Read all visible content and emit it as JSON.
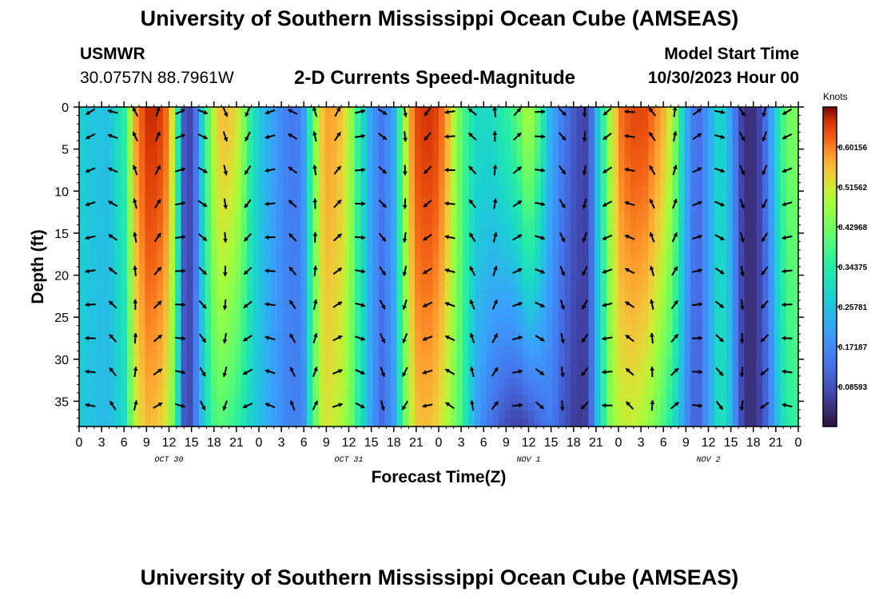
{
  "header": {
    "title": "University of Southern Mississippi Ocean Cube (AMSEAS)",
    "station_name": "USMWR",
    "station_coords": "30.0757N  88.7961W",
    "plot_title": "2-D Currents Speed-Magnitude",
    "start_label": "Model Start Time",
    "start_value": "10/30/2023 Hour 00"
  },
  "footer": {
    "title": "University of Southern Mississippi Ocean Cube (AMSEAS)"
  },
  "chart_data": {
    "type": "heatmap",
    "title": "2-D Currents Speed-Magnitude",
    "xlabel": "Forecast Time(Z)",
    "ylabel": "Depth (ft)",
    "x_range_hours": [
      0,
      96
    ],
    "y_range_ft": [
      0,
      38
    ],
    "y_ticks": [
      0,
      5,
      10,
      15,
      20,
      25,
      30,
      35
    ],
    "x_ticks": [
      {
        "h": 0,
        "label": "0"
      },
      {
        "h": 3,
        "label": "3"
      },
      {
        "h": 6,
        "label": "6"
      },
      {
        "h": 9,
        "label": "9"
      },
      {
        "h": 12,
        "label": "12"
      },
      {
        "h": 15,
        "label": "15"
      },
      {
        "h": 18,
        "label": "18"
      },
      {
        "h": 21,
        "label": "21"
      },
      {
        "h": 24,
        "label": "0"
      },
      {
        "h": 27,
        "label": "3"
      },
      {
        "h": 30,
        "label": "6"
      },
      {
        "h": 33,
        "label": "9"
      },
      {
        "h": 36,
        "label": "12"
      },
      {
        "h": 39,
        "label": "15"
      },
      {
        "h": 42,
        "label": "18"
      },
      {
        "h": 45,
        "label": "21"
      },
      {
        "h": 48,
        "label": "0"
      },
      {
        "h": 51,
        "label": "3"
      },
      {
        "h": 54,
        "label": "6"
      },
      {
        "h": 57,
        "label": "9"
      },
      {
        "h": 60,
        "label": "12"
      },
      {
        "h": 63,
        "label": "15"
      },
      {
        "h": 66,
        "label": "18"
      },
      {
        "h": 69,
        "label": "21"
      },
      {
        "h": 72,
        "label": "0"
      },
      {
        "h": 75,
        "label": "3"
      },
      {
        "h": 78,
        "label": "6"
      },
      {
        "h": 81,
        "label": "9"
      },
      {
        "h": 84,
        "label": "12"
      },
      {
        "h": 87,
        "label": "15"
      },
      {
        "h": 90,
        "label": "18"
      },
      {
        "h": 93,
        "label": "21"
      },
      {
        "h": 96,
        "label": "0"
      }
    ],
    "day_labels": [
      {
        "h": 12,
        "label": "OCT 30"
      },
      {
        "h": 36,
        "label": "OCT 31"
      },
      {
        "h": 60,
        "label": "NOV 1"
      },
      {
        "h": 84,
        "label": "NOV 2"
      }
    ],
    "colorbar": {
      "unit": "Knots",
      "min": 0.0,
      "max": 0.6875,
      "ticks": [
        0.08593,
        0.17187,
        0.25781,
        0.34375,
        0.42968,
        0.51562,
        0.60156
      ],
      "tick_labels": [
        "0.08593",
        "0.17187",
        "0.25781",
        "0.34375",
        "0.42968",
        "0.51562",
        "0.60156"
      ]
    },
    "speed_profile": {
      "hours": [
        0,
        2,
        4,
        6,
        7.5,
        9,
        10.5,
        12,
        13,
        13.8,
        14.5,
        15.5,
        16.5,
        17.5,
        18.5,
        20,
        21.5,
        23,
        24.5,
        26,
        27.5,
        29,
        30,
        31,
        32,
        33,
        34.5,
        36,
        37.5,
        39,
        40.5,
        42,
        43,
        44,
        45,
        46.5,
        48,
        49.5,
        51,
        53,
        55,
        57,
        58.5,
        60,
        61.5,
        63,
        64.5,
        66,
        67.5,
        68.5,
        69.5,
        71,
        72.5,
        74,
        75.5,
        77,
        78.5,
        79.5,
        80.5,
        81.5,
        82.5,
        84,
        85.5,
        86.5,
        87.5,
        88.5,
        89.5,
        90.5,
        91.5,
        92.5,
        93.5,
        94.5,
        95.5,
        96
      ],
      "surface": [
        0.28,
        0.26,
        0.25,
        0.35,
        0.58,
        0.66,
        0.66,
        0.6,
        0.4,
        0.12,
        0.05,
        0.12,
        0.3,
        0.45,
        0.55,
        0.56,
        0.5,
        0.33,
        0.25,
        0.2,
        0.16,
        0.14,
        0.2,
        0.38,
        0.53,
        0.58,
        0.57,
        0.5,
        0.33,
        0.2,
        0.14,
        0.22,
        0.4,
        0.56,
        0.64,
        0.66,
        0.64,
        0.55,
        0.4,
        0.3,
        0.3,
        0.35,
        0.4,
        0.5,
        0.38,
        0.22,
        0.15,
        0.1,
        0.06,
        0.14,
        0.3,
        0.5,
        0.62,
        0.64,
        0.64,
        0.6,
        0.55,
        0.45,
        0.3,
        0.18,
        0.12,
        0.2,
        0.3,
        0.25,
        0.15,
        0.06,
        0.03,
        0.05,
        0.12,
        0.22,
        0.35,
        0.42,
        0.45,
        0.4
      ],
      "bottom": [
        0.27,
        0.25,
        0.24,
        0.3,
        0.5,
        0.56,
        0.55,
        0.5,
        0.35,
        0.12,
        0.05,
        0.15,
        0.26,
        0.35,
        0.4,
        0.38,
        0.34,
        0.28,
        0.24,
        0.2,
        0.17,
        0.15,
        0.18,
        0.35,
        0.48,
        0.52,
        0.5,
        0.45,
        0.33,
        0.2,
        0.12,
        0.2,
        0.35,
        0.48,
        0.55,
        0.56,
        0.53,
        0.47,
        0.38,
        0.2,
        0.13,
        0.08,
        0.06,
        0.08,
        0.12,
        0.15,
        0.1,
        0.06,
        0.05,
        0.14,
        0.3,
        0.46,
        0.5,
        0.5,
        0.48,
        0.43,
        0.36,
        0.3,
        0.22,
        0.14,
        0.1,
        0.2,
        0.32,
        0.3,
        0.18,
        0.07,
        0.03,
        0.05,
        0.1,
        0.18,
        0.28,
        0.34,
        0.36,
        0.33
      ]
    },
    "vector_depths_ft": [
      0,
      3.5,
      7.5,
      11.5,
      15.5,
      19.5,
      23.5,
      27.5,
      31.5,
      35.5
    ]
  }
}
